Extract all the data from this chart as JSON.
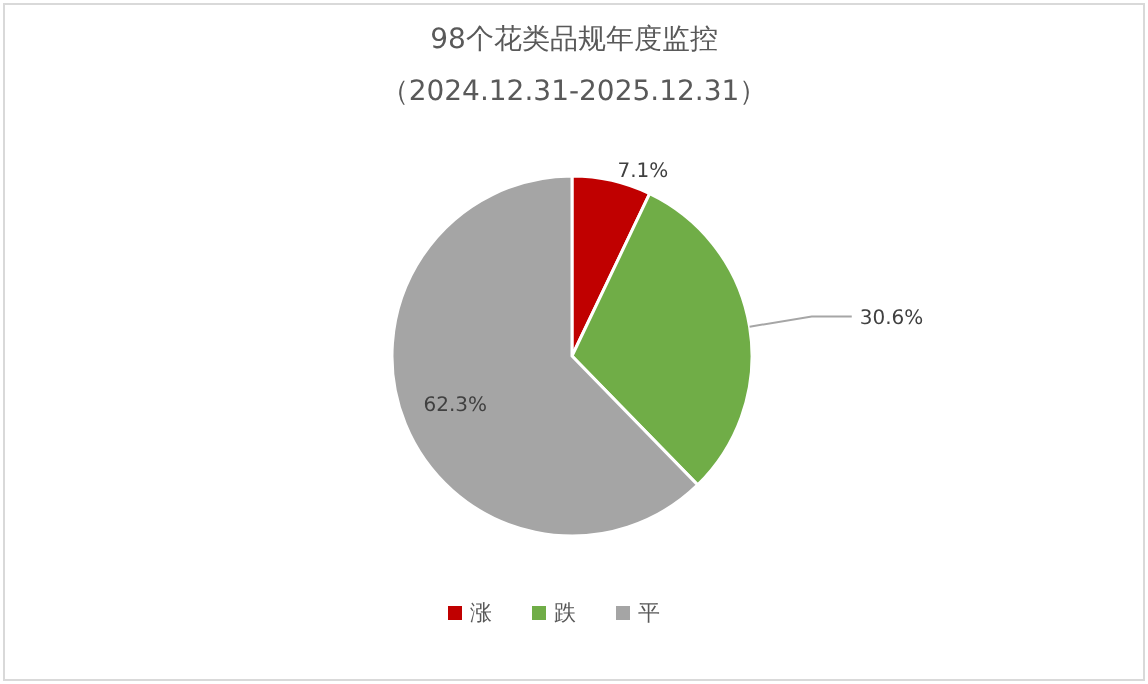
{
  "chart_data": {
    "type": "pie",
    "title": "98个花类品规年度监控",
    "subtitle": "（2024.12.31-2025.12.31）",
    "categories": [
      "涨",
      "跌",
      "平"
    ],
    "values": [
      7.1,
      30.6,
      62.3
    ],
    "colors": [
      "#c00000",
      "#70ad47",
      "#a5a5a5"
    ],
    "value_labels": [
      "7.1%",
      "30.6%",
      "62.3%"
    ],
    "legend": "bottom"
  }
}
